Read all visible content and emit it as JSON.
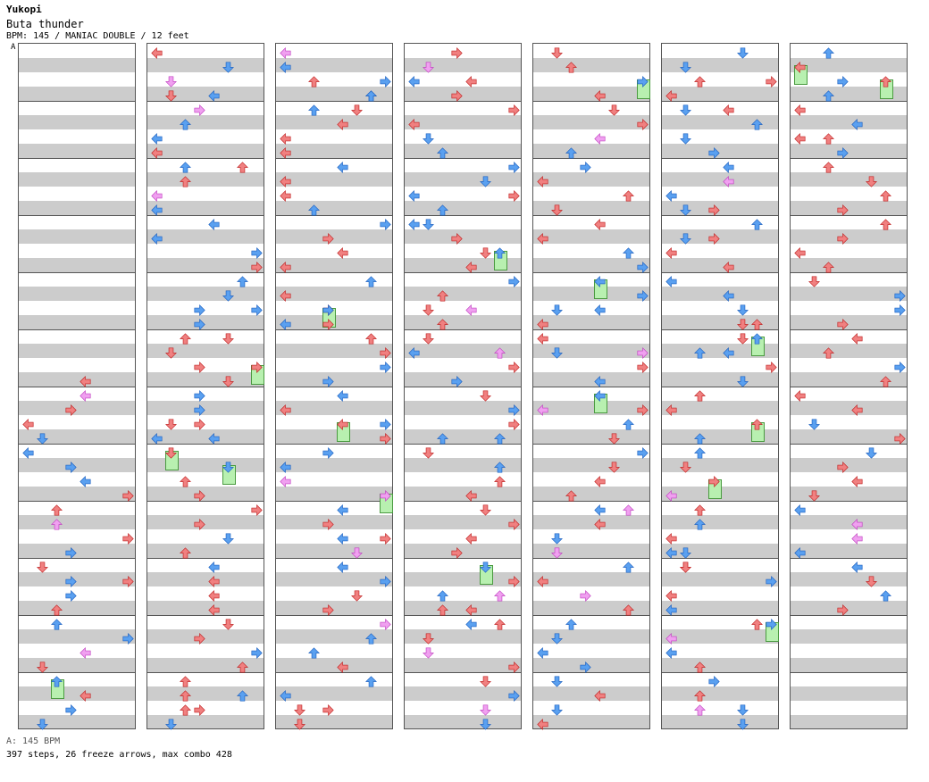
{
  "header": {
    "artist": "Yukopi",
    "title": "Buta thunder",
    "info": "BPM: 145 / MANIAC DOUBLE / 12 feet",
    "marker": "A"
  },
  "footer": {
    "bpm_line": "A: 145 BPM",
    "stats": "397 steps, 26 freeze arrows, max combo 428"
  },
  "colors": {
    "red_arrow": "#f08080",
    "blue_arrow": "#5aa0f0",
    "pink_arrow": "#f0a0f0",
    "freeze": "#b8f0b0"
  },
  "icons": {
    "left": "left-arrow-icon",
    "down": "down-arrow-icon",
    "up": "up-arrow-icon",
    "right": "right-arrow-icon"
  }
}
